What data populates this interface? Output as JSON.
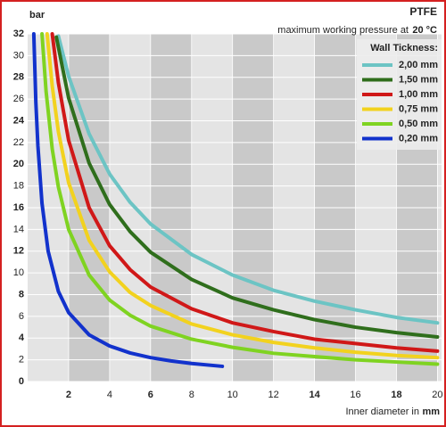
{
  "chart_data": {
    "type": "line",
    "title": "PTFE",
    "subtitle": "maximum working pressure at",
    "subtitle_emphasis": "20 °C",
    "y_label": "bar",
    "x_label": "Inner diameter in",
    "x_label_unit": "mm",
    "legend_title": "Wall Tickness:",
    "legend_position": "top-right",
    "xlim": [
      0,
      20.2
    ],
    "ylim": [
      0,
      32
    ],
    "xticks": [
      2,
      4,
      6,
      8,
      10,
      12,
      14,
      16,
      18,
      20
    ],
    "yticks": [
      0,
      2,
      4,
      6,
      8,
      10,
      12,
      14,
      16,
      18,
      20,
      22,
      24,
      26,
      28,
      30,
      32
    ],
    "series": [
      {
        "name": "2,00 mm",
        "color": "#6cc4c4",
        "x": [
          1.5,
          2,
          3,
          4,
          5,
          6,
          8,
          10,
          12,
          14,
          16,
          18,
          20
        ],
        "values": [
          31.8,
          28.1,
          22.8,
          19.1,
          16.5,
          14.5,
          11.7,
          9.8,
          8.4,
          7.4,
          6.6,
          5.9,
          5.4
        ]
      },
      {
        "name": "1,50 mm",
        "color": "#2f6e1c",
        "x": [
          1.4,
          2,
          3,
          4,
          5,
          6,
          8,
          10,
          12,
          14,
          16,
          18,
          20
        ],
        "values": [
          31.7,
          26.1,
          20.1,
          16.3,
          13.8,
          11.9,
          9.4,
          7.7,
          6.6,
          5.7,
          5.0,
          4.5,
          4.1
        ]
      },
      {
        "name": "1,00 mm",
        "color": "#d01818",
        "x": [
          1.2,
          1.5,
          2,
          3,
          4,
          5,
          6,
          8,
          10,
          12,
          14,
          16,
          18,
          20
        ],
        "values": [
          32,
          27.5,
          22.2,
          16.0,
          12.5,
          10.3,
          8.7,
          6.7,
          5.4,
          4.6,
          3.9,
          3.5,
          3.1,
          2.8
        ]
      },
      {
        "name": "0,75 mm",
        "color": "#f2d21e",
        "x": [
          0.95,
          1.2,
          1.5,
          2,
          3,
          4,
          5,
          6,
          8,
          10,
          12,
          14,
          16,
          18,
          20
        ],
        "values": [
          32,
          27.2,
          23.0,
          18.3,
          13.0,
          10.1,
          8.2,
          7.0,
          5.3,
          4.3,
          3.6,
          3.1,
          2.7,
          2.4,
          2.2
        ]
      },
      {
        "name": "0,50 mm",
        "color": "#7fd321",
        "x": [
          0.7,
          0.9,
          1.2,
          1.5,
          2,
          3,
          4,
          5,
          6,
          8,
          10,
          12,
          14,
          16,
          18,
          20
        ],
        "values": [
          32,
          26.7,
          21.4,
          17.9,
          14.0,
          9.8,
          7.5,
          6.1,
          5.1,
          3.9,
          3.15,
          2.6,
          2.3,
          2.0,
          1.8,
          1.6
        ]
      },
      {
        "name": "0,20 mm",
        "color": "#1232cc",
        "x": [
          0.3,
          0.4,
          0.5,
          0.7,
          1,
          1.5,
          2,
          3,
          4,
          5,
          6,
          7,
          8,
          9.5
        ],
        "values": [
          32,
          25.7,
          21.7,
          16.4,
          12.0,
          8.3,
          6.35,
          4.3,
          3.27,
          2.63,
          2.2,
          1.9,
          1.66,
          1.4
        ]
      }
    ]
  }
}
